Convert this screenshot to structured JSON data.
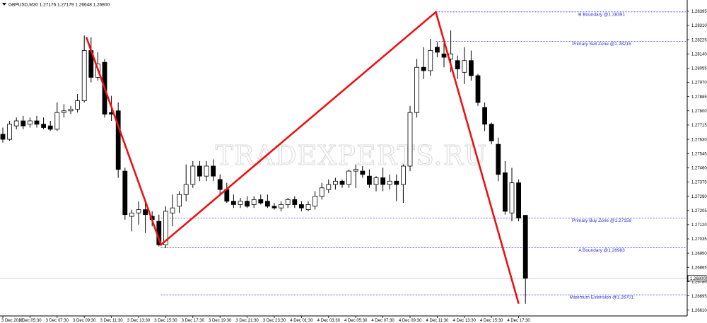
{
  "chart_data": {
    "type": "candlestick",
    "symbol_header": "GBPUSD,M30  1.27176 1.27179 1.26648 1.26800",
    "watermark": "TRADEXPERTS.RU",
    "current_price": 1.268,
    "current_price_label": "1.26800",
    "ylim": [
      1.26575,
      1.28445
    ],
    "y_ticks": [
      {
        "value": 1.28395,
        "label": "1.28395"
      },
      {
        "value": 1.2831,
        "label": "1.28310"
      },
      {
        "value": 1.28225,
        "label": "1.28225"
      },
      {
        "value": 1.2814,
        "label": "1.28140"
      },
      {
        "value": 1.28055,
        "label": "1.28055"
      },
      {
        "value": 1.2797,
        "label": "1.27970"
      },
      {
        "value": 1.27885,
        "label": "1.27885"
      },
      {
        "value": 1.278,
        "label": "1.27800"
      },
      {
        "value": 1.27715,
        "label": "1.27715"
      },
      {
        "value": 1.2763,
        "label": "1.27630"
      },
      {
        "value": 1.27545,
        "label": "1.27545"
      },
      {
        "value": 1.2746,
        "label": "1.27460"
      },
      {
        "value": 1.27375,
        "label": "1.27375"
      },
      {
        "value": 1.2729,
        "label": "1.27290"
      },
      {
        "value": 1.27205,
        "label": "1.27205"
      },
      {
        "value": 1.2712,
        "label": "1.27120"
      },
      {
        "value": 1.27035,
        "label": "1.27035"
      },
      {
        "value": 1.2695,
        "label": "1.26950"
      },
      {
        "value": 1.26865,
        "label": "1.26865"
      },
      {
        "value": 1.2678,
        "label": "1.26780"
      },
      {
        "value": 1.26695,
        "label": "1.26695"
      },
      {
        "value": 1.2661,
        "label": "1.26610"
      }
    ],
    "x_ticks": [
      {
        "index": 0,
        "label": "3 Dec 2018"
      },
      {
        "index": 4,
        "label": "3 Dec 05:30"
      },
      {
        "index": 8,
        "label": "3 Dec 07:30"
      },
      {
        "index": 12,
        "label": "3 Dec 09:30"
      },
      {
        "index": 16,
        "label": "3 Dec 11:30"
      },
      {
        "index": 20,
        "label": "3 Dec 13:30"
      },
      {
        "index": 24,
        "label": "3 Dec 15:30"
      },
      {
        "index": 28,
        "label": "3 Dec 17:30"
      },
      {
        "index": 32,
        "label": "3 Dec 19:30"
      },
      {
        "index": 36,
        "label": "3 Dec 21:30"
      },
      {
        "index": 40,
        "label": "3 Dec 23:30"
      },
      {
        "index": 44,
        "label": "4 Dec 01:30"
      },
      {
        "index": 48,
        "label": "4 Dec 03:30"
      },
      {
        "index": 52,
        "label": "4 Dec 05:30"
      },
      {
        "index": 56,
        "label": "4 Dec 07:30"
      },
      {
        "index": 60,
        "label": "4 Dec 09:30"
      },
      {
        "index": 64,
        "label": "4 Dec 11:30"
      },
      {
        "index": 68,
        "label": "4 Dec 13:30"
      },
      {
        "index": 72,
        "label": "4 Dec 15:30"
      },
      {
        "index": 76,
        "label": "4 Dec 17:30"
      }
    ],
    "candles": [
      {
        "o": 1.2766,
        "h": 1.277,
        "l": 1.2761,
        "c": 1.2763
      },
      {
        "o": 1.2763,
        "h": 1.2774,
        "l": 1.2762,
        "c": 1.2772
      },
      {
        "o": 1.2771,
        "h": 1.2776,
        "l": 1.2769,
        "c": 1.2774
      },
      {
        "o": 1.2774,
        "h": 1.2777,
        "l": 1.2769,
        "c": 1.2771
      },
      {
        "o": 1.2772,
        "h": 1.2776,
        "l": 1.277,
        "c": 1.2774
      },
      {
        "o": 1.2774,
        "h": 1.2777,
        "l": 1.277,
        "c": 1.2772
      },
      {
        "o": 1.2772,
        "h": 1.2776,
        "l": 1.2769,
        "c": 1.277
      },
      {
        "o": 1.2771,
        "h": 1.2774,
        "l": 1.2768,
        "c": 1.2769
      },
      {
        "o": 1.2769,
        "h": 1.2785,
        "l": 1.2768,
        "c": 1.2779
      },
      {
        "o": 1.2779,
        "h": 1.2784,
        "l": 1.2776,
        "c": 1.278
      },
      {
        "o": 1.278,
        "h": 1.2783,
        "l": 1.2778,
        "c": 1.2781
      },
      {
        "o": 1.2781,
        "h": 1.279,
        "l": 1.2779,
        "c": 1.2786
      },
      {
        "o": 1.2786,
        "h": 1.2825,
        "l": 1.2785,
        "c": 1.2816
      },
      {
        "o": 1.2816,
        "h": 1.2824,
        "l": 1.2797,
        "c": 1.28
      },
      {
        "o": 1.28,
        "h": 1.2815,
        "l": 1.2798,
        "c": 1.2808
      },
      {
        "o": 1.2809,
        "h": 1.2811,
        "l": 1.2776,
        "c": 1.2778
      },
      {
        "o": 1.2779,
        "h": 1.2789,
        "l": 1.2774,
        "c": 1.2778
      },
      {
        "o": 1.278,
        "h": 1.2785,
        "l": 1.274,
        "c": 1.2745
      },
      {
        "o": 1.2744,
        "h": 1.2746,
        "l": 1.2715,
        "c": 1.2718
      },
      {
        "o": 1.2717,
        "h": 1.2721,
        "l": 1.2708,
        "c": 1.2719
      },
      {
        "o": 1.2719,
        "h": 1.2726,
        "l": 1.2712,
        "c": 1.2721
      },
      {
        "o": 1.2721,
        "h": 1.2727,
        "l": 1.2707,
        "c": 1.2718
      },
      {
        "o": 1.2717,
        "h": 1.272,
        "l": 1.2711,
        "c": 1.2715
      },
      {
        "o": 1.2714,
        "h": 1.2718,
        "l": 1.2699,
        "c": 1.27
      },
      {
        "o": 1.27,
        "h": 1.2723,
        "l": 1.2698,
        "c": 1.272
      },
      {
        "o": 1.2719,
        "h": 1.273,
        "l": 1.2711,
        "c": 1.2722
      },
      {
        "o": 1.2723,
        "h": 1.2732,
        "l": 1.2719,
        "c": 1.273
      },
      {
        "o": 1.273,
        "h": 1.2748,
        "l": 1.2726,
        "c": 1.2736
      },
      {
        "o": 1.2736,
        "h": 1.275,
        "l": 1.2734,
        "c": 1.2747
      },
      {
        "o": 1.2747,
        "h": 1.275,
        "l": 1.2738,
        "c": 1.2741
      },
      {
        "o": 1.2741,
        "h": 1.275,
        "l": 1.2738,
        "c": 1.2747
      },
      {
        "o": 1.2747,
        "h": 1.2751,
        "l": 1.2738,
        "c": 1.2741
      },
      {
        "o": 1.2739,
        "h": 1.2742,
        "l": 1.273,
        "c": 1.2733
      },
      {
        "o": 1.2733,
        "h": 1.2737,
        "l": 1.2725,
        "c": 1.2726
      },
      {
        "o": 1.2726,
        "h": 1.273,
        "l": 1.2722,
        "c": 1.2724
      },
      {
        "o": 1.2724,
        "h": 1.2728,
        "l": 1.2722,
        "c": 1.2726
      },
      {
        "o": 1.2726,
        "h": 1.2729,
        "l": 1.2722,
        "c": 1.2723
      },
      {
        "o": 1.2724,
        "h": 1.2729,
        "l": 1.2722,
        "c": 1.2727
      },
      {
        "o": 1.2727,
        "h": 1.273,
        "l": 1.2724,
        "c": 1.2725
      },
      {
        "o": 1.2726,
        "h": 1.273,
        "l": 1.2722,
        "c": 1.2723
      },
      {
        "o": 1.2723,
        "h": 1.2725,
        "l": 1.2721,
        "c": 1.2722
      },
      {
        "o": 1.2722,
        "h": 1.2726,
        "l": 1.272,
        "c": 1.2724
      },
      {
        "o": 1.2724,
        "h": 1.2728,
        "l": 1.2722,
        "c": 1.2727
      },
      {
        "o": 1.2727,
        "h": 1.2729,
        "l": 1.2722,
        "c": 1.2724
      },
      {
        "o": 1.2724,
        "h": 1.2726,
        "l": 1.272,
        "c": 1.2722
      },
      {
        "o": 1.2721,
        "h": 1.2726,
        "l": 1.272,
        "c": 1.2724
      },
      {
        "o": 1.2723,
        "h": 1.2732,
        "l": 1.2721,
        "c": 1.2729
      },
      {
        "o": 1.2729,
        "h": 1.2737,
        "l": 1.2727,
        "c": 1.2734
      },
      {
        "o": 1.2733,
        "h": 1.2739,
        "l": 1.2731,
        "c": 1.2736
      },
      {
        "o": 1.2736,
        "h": 1.274,
        "l": 1.2733,
        "c": 1.2738
      },
      {
        "o": 1.2738,
        "h": 1.2739,
        "l": 1.2734,
        "c": 1.2736
      },
      {
        "o": 1.2736,
        "h": 1.2745,
        "l": 1.2734,
        "c": 1.2744
      },
      {
        "o": 1.2744,
        "h": 1.2748,
        "l": 1.2734,
        "c": 1.2745
      },
      {
        "o": 1.2744,
        "h": 1.2747,
        "l": 1.274,
        "c": 1.2742
      },
      {
        "o": 1.2741,
        "h": 1.2745,
        "l": 1.2734,
        "c": 1.2736
      },
      {
        "o": 1.2736,
        "h": 1.2741,
        "l": 1.2732,
        "c": 1.274
      },
      {
        "o": 1.274,
        "h": 1.2746,
        "l": 1.2732,
        "c": 1.2736
      },
      {
        "o": 1.2736,
        "h": 1.2742,
        "l": 1.2733,
        "c": 1.2738
      },
      {
        "o": 1.2738,
        "h": 1.2742,
        "l": 1.2726,
        "c": 1.2736
      },
      {
        "o": 1.2736,
        "h": 1.2748,
        "l": 1.2725,
        "c": 1.2747
      },
      {
        "o": 1.2747,
        "h": 1.2783,
        "l": 1.2744,
        "c": 1.2779
      },
      {
        "o": 1.2779,
        "h": 1.2811,
        "l": 1.2776,
        "c": 1.2806
      },
      {
        "o": 1.2806,
        "h": 1.2818,
        "l": 1.2799,
        "c": 1.2804
      },
      {
        "o": 1.2804,
        "h": 1.2823,
        "l": 1.2801,
        "c": 1.2816
      },
      {
        "o": 1.2818,
        "h": 1.2821,
        "l": 1.2812,
        "c": 1.2815
      },
      {
        "o": 1.2814,
        "h": 1.2823,
        "l": 1.2806,
        "c": 1.2812
      },
      {
        "o": 1.2811,
        "h": 1.2828,
        "l": 1.2803,
        "c": 1.2814
      },
      {
        "o": 1.281,
        "h": 1.2813,
        "l": 1.2799,
        "c": 1.2805
      },
      {
        "o": 1.2803,
        "h": 1.2818,
        "l": 1.2796,
        "c": 1.281
      },
      {
        "o": 1.281,
        "h": 1.2816,
        "l": 1.2798,
        "c": 1.2801
      },
      {
        "o": 1.2801,
        "h": 1.2802,
        "l": 1.2783,
        "c": 1.2785
      },
      {
        "o": 1.2782,
        "h": 1.2785,
        "l": 1.2768,
        "c": 1.2772
      },
      {
        "o": 1.2772,
        "h": 1.2773,
        "l": 1.276,
        "c": 1.2762
      },
      {
        "o": 1.276,
        "h": 1.2764,
        "l": 1.2738,
        "c": 1.2742
      },
      {
        "o": 1.2743,
        "h": 1.275,
        "l": 1.2718,
        "c": 1.272
      },
      {
        "o": 1.2719,
        "h": 1.2746,
        "l": 1.2714,
        "c": 1.2737
      },
      {
        "o": 1.2737,
        "h": 1.2739,
        "l": 1.2714,
        "c": 1.2716
      },
      {
        "o": 1.27176,
        "h": 1.27179,
        "l": 1.26648,
        "c": 1.268
      }
    ],
    "pattern": {
      "points": [
        {
          "index": 12.3,
          "price": 1.2824
        },
        {
          "index": 23.3,
          "price": 1.27
        },
        {
          "index": 63.8,
          "price": 1.2839
        },
        {
          "index": 76.0,
          "price": 1.26648
        }
      ],
      "color": "#ee1111"
    },
    "levels": [
      {
        "price": 1.28391,
        "label": "B Boundary @1.28391",
        "from_index": 63.8
      },
      {
        "price": 1.28215,
        "label": "Primary Sell Zone @1.28215",
        "from_index": 63.8
      },
      {
        "price": 1.27159,
        "label": "Primary Buy Zone @1.27159",
        "from_index": 23.3
      },
      {
        "price": 1.26983,
        "label": "A Boundary @1.26983",
        "from_index": 23.3
      },
      {
        "price": 1.26701,
        "label": "Maximum Extension @1.26701",
        "from_index": 23.3
      }
    ],
    "bull_color": "#ffffff",
    "bear_color": "#000000",
    "level_color": "#2b2bd8"
  }
}
